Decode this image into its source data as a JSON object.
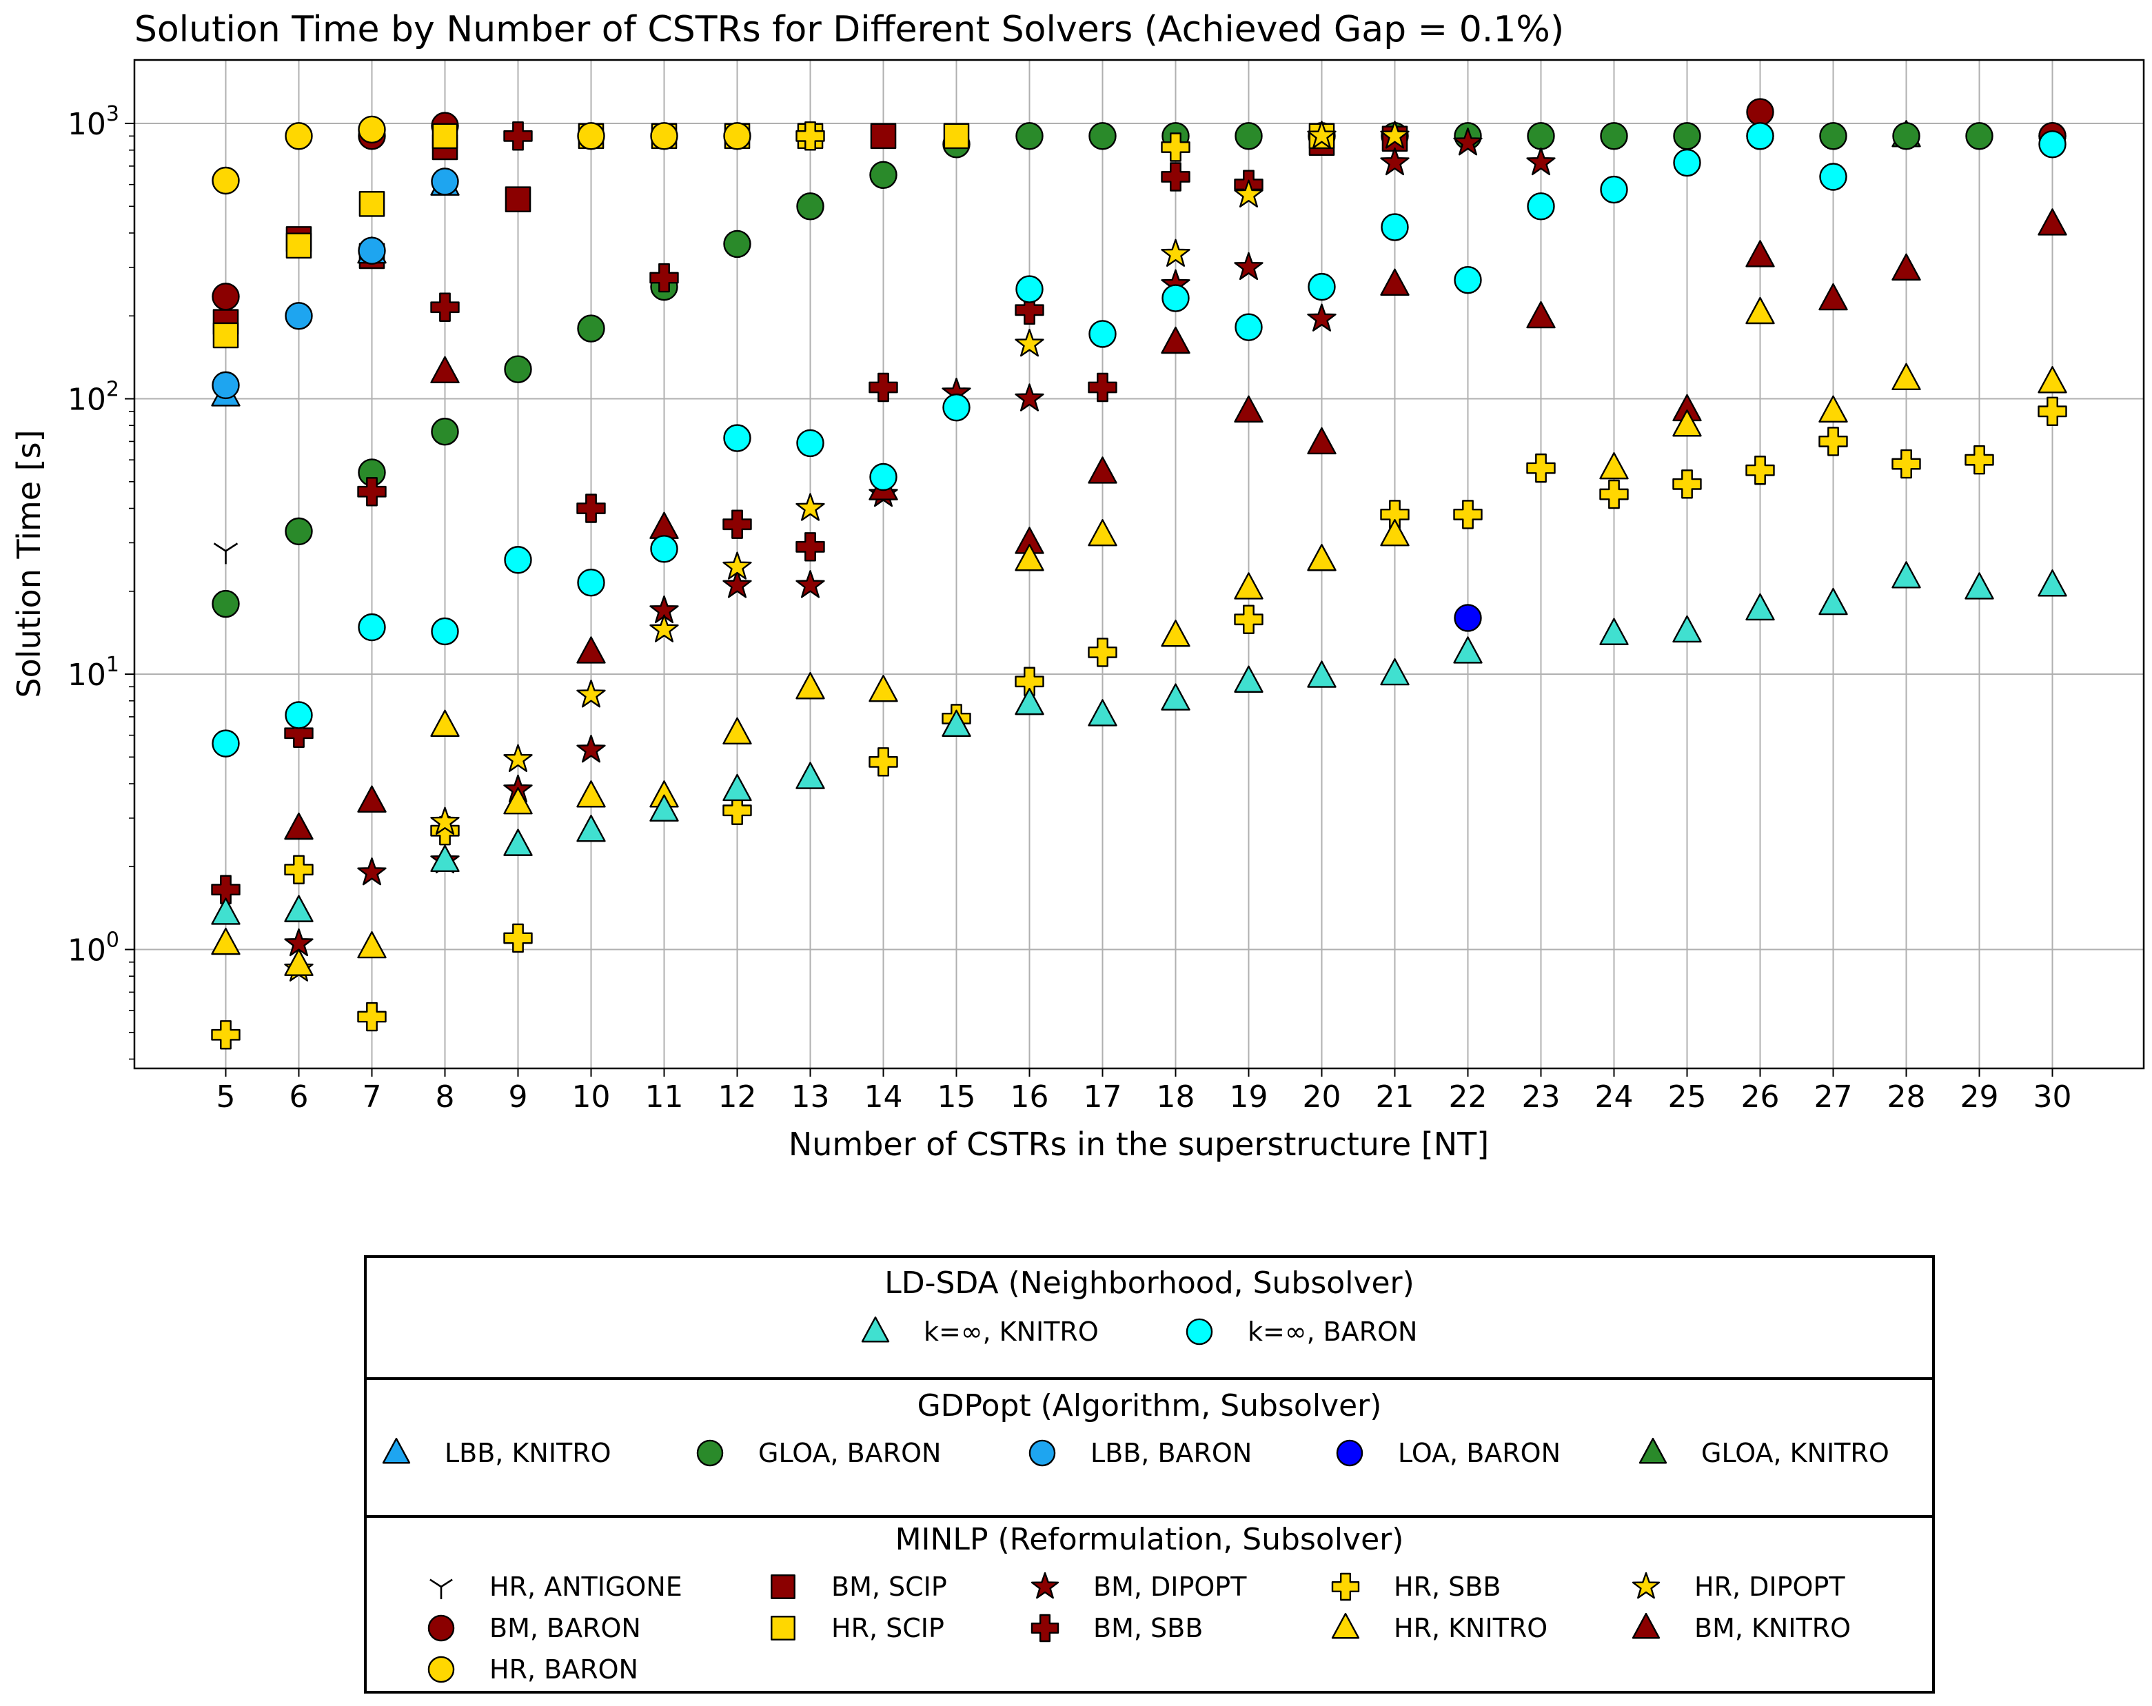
{
  "chart_data": {
    "type": "scatter",
    "title": "Solution Time by Number of CSTRs for Different Solvers (Achieved Gap = 0.1%)",
    "xlabel": "Number of CSTRs in the superstructure [NT]",
    "ylabel": "Solution Time [s]",
    "y_scale": "log",
    "ylim": [
      0.37,
      1700
    ],
    "xlim": [
      3.75,
      31.25
    ],
    "x_ticks": [
      "5",
      "6",
      "7",
      "8",
      "9",
      "10",
      "11",
      "12",
      "13",
      "14",
      "15",
      "16",
      "17",
      "18",
      "19",
      "20",
      "21",
      "22",
      "23",
      "24",
      "25",
      "26",
      "27",
      "28",
      "29",
      "30"
    ],
    "y_ticks": [
      {
        "value": 1,
        "base": "10",
        "exp": "0"
      },
      {
        "value": 10,
        "base": "10",
        "exp": "1"
      },
      {
        "value": 100,
        "base": "10",
        "exp": "2"
      },
      {
        "value": 1000,
        "base": "10",
        "exp": "3"
      }
    ],
    "grid": true,
    "legend_groups": [
      {
        "title": "LD-SDA (Neighborhood, Subsolver)",
        "series": [
          "ldsda_knitro",
          "ldsda_baron"
        ]
      },
      {
        "title": "GDPopt (Algorithm, Subsolver)",
        "series": [
          "gdp_lbb_knitro",
          "gdp_gloa_baron",
          "gdp_lbb_baron",
          "gdp_loa_baron",
          "gdp_gloa_knitro"
        ]
      },
      {
        "title": "MINLP (Reformulation, Subsolver)",
        "series": [
          "hr_antigone",
          "bm_baron",
          "hr_baron",
          "bm_scip",
          "hr_scip",
          "bm_dipopt",
          "bm_sbb",
          "hr_sbb",
          "hr_knitro",
          "hr_dipopt",
          "bm_knitro"
        ]
      }
    ],
    "series": [
      {
        "id": "gdp_gloa_knitro",
        "name": "GLOA, KNITRO",
        "marker": "triangle",
        "color": "#2a8a2a",
        "points": [
          [
            28,
            900
          ]
        ]
      },
      {
        "id": "gdp_gloa_baron",
        "name": "GLOA, BARON",
        "marker": "circle",
        "color": "#2a8a2a",
        "points": [
          [
            5,
            18
          ],
          [
            6,
            33
          ],
          [
            7,
            54
          ],
          [
            8,
            76
          ],
          [
            9,
            128
          ],
          [
            10,
            180
          ],
          [
            11,
            255
          ],
          [
            12,
            365
          ],
          [
            13,
            500
          ],
          [
            14,
            650
          ],
          [
            15,
            840
          ],
          [
            16,
            900
          ],
          [
            17,
            900
          ],
          [
            18,
            900
          ],
          [
            19,
            900
          ],
          [
            20,
            900
          ],
          [
            21,
            900
          ],
          [
            22,
            900
          ],
          [
            23,
            900
          ],
          [
            24,
            900
          ],
          [
            25,
            900
          ],
          [
            26,
            900
          ],
          [
            27,
            900
          ],
          [
            28,
            900
          ],
          [
            29,
            900
          ],
          [
            30,
            900
          ]
        ]
      },
      {
        "id": "bm_baron",
        "name": "BM, BARON",
        "marker": "circle",
        "color": "#8b0000",
        "points": [
          [
            5,
            235
          ],
          [
            7,
            900
          ],
          [
            8,
            980
          ],
          [
            26,
            1100
          ],
          [
            30,
            900
          ]
        ]
      },
      {
        "id": "bm_scip",
        "name": "BM, SCIP",
        "marker": "square",
        "color": "#8b0000",
        "points": [
          [
            5,
            190
          ],
          [
            6,
            380
          ],
          [
            7,
            330
          ],
          [
            8,
            820
          ],
          [
            9,
            530
          ],
          [
            14,
            900
          ],
          [
            20,
            850
          ],
          [
            21,
            880
          ]
        ]
      },
      {
        "id": "hr_scip",
        "name": "HR, SCIP",
        "marker": "square",
        "color": "#ffd700",
        "points": [
          [
            5,
            170
          ],
          [
            6,
            360
          ],
          [
            7,
            510
          ],
          [
            8,
            900
          ],
          [
            10,
            900
          ],
          [
            11,
            900
          ],
          [
            12,
            900
          ],
          [
            13,
            900
          ],
          [
            15,
            900
          ],
          [
            20,
            900
          ]
        ]
      },
      {
        "id": "hr_baron",
        "name": "HR, BARON",
        "marker": "circle",
        "color": "#ffd700",
        "points": [
          [
            5,
            620
          ],
          [
            6,
            900
          ],
          [
            7,
            950
          ],
          [
            10,
            900
          ],
          [
            11,
            900
          ],
          [
            12,
            900
          ]
        ]
      },
      {
        "id": "gdp_lbb_knitro",
        "name": "LBB, KNITRO",
        "marker": "triangle",
        "color": "#1ea5f0",
        "points": [
          [
            5,
            103
          ],
          [
            7,
            340
          ],
          [
            8,
            600
          ]
        ]
      },
      {
        "id": "gdp_lbb_baron",
        "name": "LBB, BARON",
        "marker": "circle",
        "color": "#1ea5f0",
        "points": [
          [
            5,
            112
          ],
          [
            6,
            200
          ],
          [
            7,
            345
          ],
          [
            8,
            615
          ]
        ]
      },
      {
        "id": "gdp_loa_baron",
        "name": "LOA, BARON",
        "marker": "circle",
        "color": "#0000ff",
        "points": [
          [
            22,
            16
          ]
        ]
      },
      {
        "id": "hr_antigone",
        "name": "HR, ANTIGONE",
        "marker": "tri_down",
        "color": "#000000",
        "points": [
          [
            5,
            28
          ]
        ]
      },
      {
        "id": "bm_sbb",
        "name": "BM, SBB",
        "marker": "plus",
        "color": "#8b0000",
        "points": [
          [
            5,
            1.65
          ],
          [
            6,
            6.1
          ],
          [
            7,
            46
          ],
          [
            8,
            215
          ],
          [
            9,
            900
          ],
          [
            10,
            40
          ],
          [
            11,
            275
          ],
          [
            12,
            35
          ],
          [
            13,
            29
          ],
          [
            14,
            110
          ],
          [
            16,
            210
          ],
          [
            17,
            110
          ],
          [
            18,
            640
          ],
          [
            19,
            600
          ]
        ]
      },
      {
        "id": "bm_dipopt",
        "name": "BM, DIPOPT",
        "marker": "star",
        "color": "#8b0000",
        "points": [
          [
            6,
            1.05
          ],
          [
            7,
            1.9
          ],
          [
            8,
            2.1
          ],
          [
            9,
            3.8
          ],
          [
            10,
            5.3
          ],
          [
            11,
            17
          ],
          [
            12,
            21
          ],
          [
            13,
            21
          ],
          [
            14,
            45
          ],
          [
            15,
            105
          ],
          [
            16,
            100
          ],
          [
            18,
            260
          ],
          [
            19,
            300
          ],
          [
            20,
            195
          ],
          [
            21,
            720
          ],
          [
            22,
            850
          ],
          [
            23,
            720
          ]
        ]
      },
      {
        "id": "bm_knitro",
        "name": "BM, KNITRO",
        "marker": "triangle",
        "color": "#8b0000",
        "points": [
          [
            6,
            2.75
          ],
          [
            7,
            3.45
          ],
          [
            8,
            125
          ],
          [
            10,
            12
          ],
          [
            11,
            34
          ],
          [
            14,
            47
          ],
          [
            16,
            30
          ],
          [
            17,
            54
          ],
          [
            18,
            160
          ],
          [
            19,
            90
          ],
          [
            20,
            69
          ],
          [
            21,
            260
          ],
          [
            23,
            198
          ],
          [
            25,
            91
          ],
          [
            26,
            330
          ],
          [
            27,
            230
          ],
          [
            28,
            295
          ],
          [
            30,
            430
          ]
        ]
      },
      {
        "id": "hr_sbb",
        "name": "HR, SBB",
        "marker": "plus",
        "color": "#ffd700",
        "points": [
          [
            5,
            0.49
          ],
          [
            6,
            1.95
          ],
          [
            7,
            0.57
          ],
          [
            8,
            2.7
          ],
          [
            9,
            1.1
          ],
          [
            12,
            3.2
          ],
          [
            13,
            900
          ],
          [
            14,
            4.8
          ],
          [
            15,
            6.9
          ],
          [
            16,
            9.4
          ],
          [
            17,
            12
          ],
          [
            18,
            820
          ],
          [
            19,
            15.8
          ],
          [
            21,
            38
          ],
          [
            22,
            38
          ],
          [
            23,
            56
          ],
          [
            24,
            45
          ],
          [
            25,
            49
          ],
          [
            26,
            55
          ],
          [
            27,
            70
          ],
          [
            28,
            58
          ],
          [
            29,
            60
          ],
          [
            30,
            90
          ]
        ]
      },
      {
        "id": "hr_dipopt",
        "name": "HR, DIPOPT",
        "marker": "star",
        "color": "#ffd700",
        "points": [
          [
            6,
            0.85
          ],
          [
            8,
            2.9
          ],
          [
            9,
            4.9
          ],
          [
            10,
            8.4
          ],
          [
            11,
            14.5
          ],
          [
            12,
            24.5
          ],
          [
            13,
            40
          ],
          [
            16,
            158
          ],
          [
            18,
            335
          ],
          [
            19,
            550
          ],
          [
            20,
            900
          ],
          [
            21,
            900
          ]
        ]
      },
      {
        "id": "hr_knitro",
        "name": "HR, KNITRO",
        "marker": "triangle",
        "color": "#ffd700",
        "points": [
          [
            5,
            1.05
          ],
          [
            6,
            0.88
          ],
          [
            7,
            1.02
          ],
          [
            8,
            6.5
          ],
          [
            9,
            3.4
          ],
          [
            10,
            3.6
          ],
          [
            11,
            3.6
          ],
          [
            12,
            6.1
          ],
          [
            13,
            8.9
          ],
          [
            14,
            8.7
          ],
          [
            16,
            26
          ],
          [
            17,
            32
          ],
          [
            18,
            13.8
          ],
          [
            19,
            20.5
          ],
          [
            20,
            26
          ],
          [
            21,
            32
          ],
          [
            24,
            56
          ],
          [
            25,
            80
          ],
          [
            26,
            205
          ],
          [
            27,
            90
          ],
          [
            28,
            118
          ],
          [
            30,
            115
          ]
        ]
      },
      {
        "id": "ldsda_knitro",
        "name": "k=∞, KNITRO",
        "marker": "triangle",
        "color": "#40e0d0",
        "points": [
          [
            5,
            1.35
          ],
          [
            6,
            1.38
          ],
          [
            8,
            2.1
          ],
          [
            9,
            2.4
          ],
          [
            10,
            2.7
          ],
          [
            11,
            3.2
          ],
          [
            12,
            3.8
          ],
          [
            13,
            4.2
          ],
          [
            15,
            6.5
          ],
          [
            16,
            7.8
          ],
          [
            17,
            7.1
          ],
          [
            18,
            8.1
          ],
          [
            19,
            9.4
          ],
          [
            20,
            9.8
          ],
          [
            21,
            10
          ],
          [
            22,
            12
          ],
          [
            24,
            14
          ],
          [
            25,
            14.3
          ],
          [
            26,
            17.2
          ],
          [
            27,
            18
          ],
          [
            28,
            22.5
          ],
          [
            29,
            20.5
          ],
          [
            30,
            21
          ]
        ]
      },
      {
        "id": "ldsda_baron",
        "name": "k=∞, BARON",
        "marker": "circle",
        "color": "#00ffff",
        "points": [
          [
            5,
            5.6
          ],
          [
            6,
            7.1
          ],
          [
            7,
            14.8
          ],
          [
            8,
            14.3
          ],
          [
            9,
            26
          ],
          [
            10,
            21.5
          ],
          [
            11,
            28.5
          ],
          [
            12,
            72
          ],
          [
            13,
            69
          ],
          [
            14,
            52
          ],
          [
            15,
            93
          ],
          [
            16,
            250
          ],
          [
            17,
            172
          ],
          [
            18,
            232
          ],
          [
            19,
            182
          ],
          [
            20,
            255
          ],
          [
            21,
            420
          ],
          [
            22,
            270
          ],
          [
            23,
            500
          ],
          [
            24,
            575
          ],
          [
            25,
            720
          ],
          [
            26,
            900
          ],
          [
            27,
            640
          ],
          [
            30,
            840
          ]
        ]
      }
    ]
  }
}
